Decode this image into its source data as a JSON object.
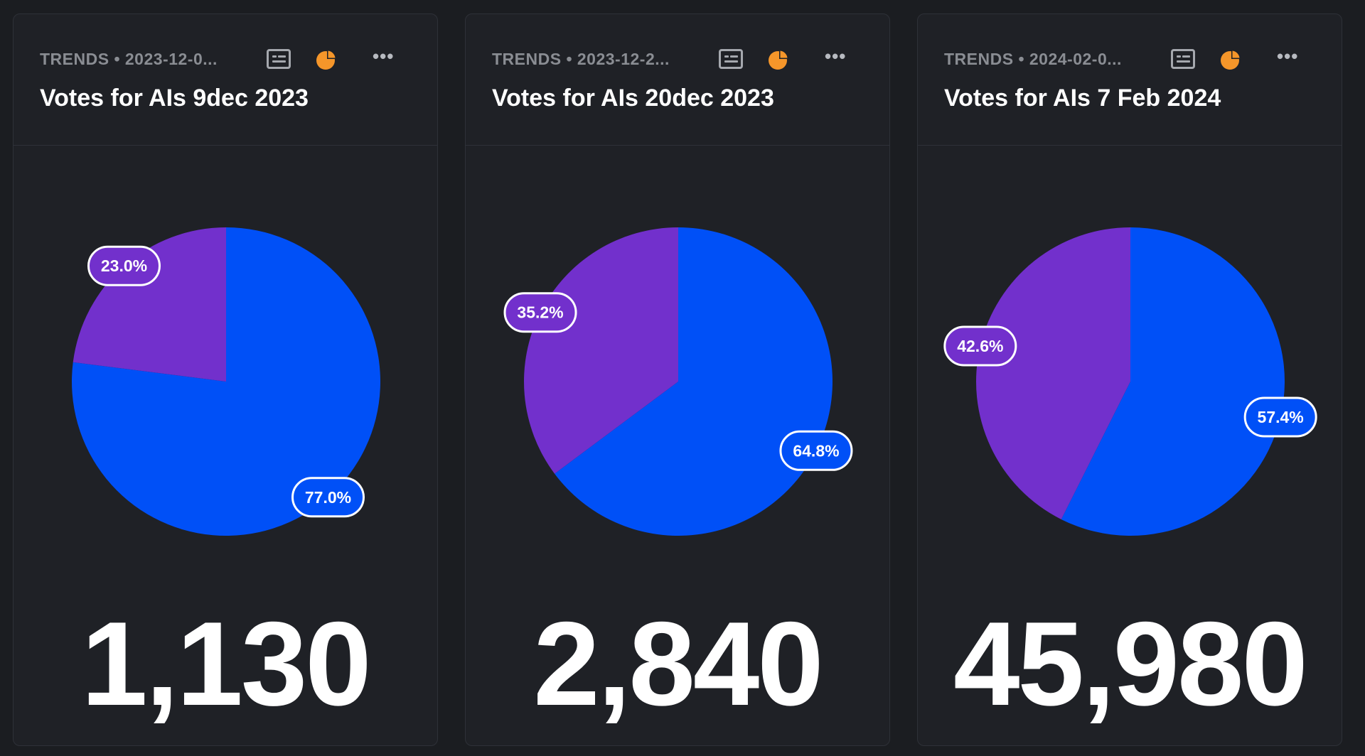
{
  "colors": {
    "blue": "#0050f7",
    "purple": "#7230cc",
    "accent_icon": "#f5962a",
    "background": "#1b1d21"
  },
  "cards": [
    {
      "subtitle": "TRENDS • 2023-12-0...",
      "title": "Votes for AIs 9dec 2023",
      "big_number": "1,130",
      "icons": [
        "list-icon",
        "pie-chart-icon",
        "more-icon"
      ]
    },
    {
      "subtitle": "TRENDS • 2023-12-2...",
      "title": "Votes for AIs 20dec 2023",
      "big_number": "2,840",
      "icons": [
        "list-icon",
        "pie-chart-icon",
        "more-icon"
      ]
    },
    {
      "subtitle": "TRENDS • 2024-02-0...",
      "title": "Votes for AIs 7 Feb 2024",
      "big_number": "45,980",
      "icons": [
        "list-icon",
        "pie-chart-icon",
        "more-icon"
      ]
    }
  ],
  "chart_data": [
    {
      "type": "pie",
      "slices": [
        {
          "value": 77.0,
          "label": "77.0%",
          "color": "#0050f7"
        },
        {
          "value": 23.0,
          "label": "23.0%",
          "color": "#7230cc"
        }
      ]
    },
    {
      "type": "pie",
      "slices": [
        {
          "value": 64.8,
          "label": "64.8%",
          "color": "#0050f7"
        },
        {
          "value": 35.2,
          "label": "35.2%",
          "color": "#7230cc"
        }
      ]
    },
    {
      "type": "pie",
      "slices": [
        {
          "value": 57.4,
          "label": "57.4%",
          "color": "#0050f7"
        },
        {
          "value": 42.6,
          "label": "42.6%",
          "color": "#7230cc"
        }
      ]
    }
  ]
}
